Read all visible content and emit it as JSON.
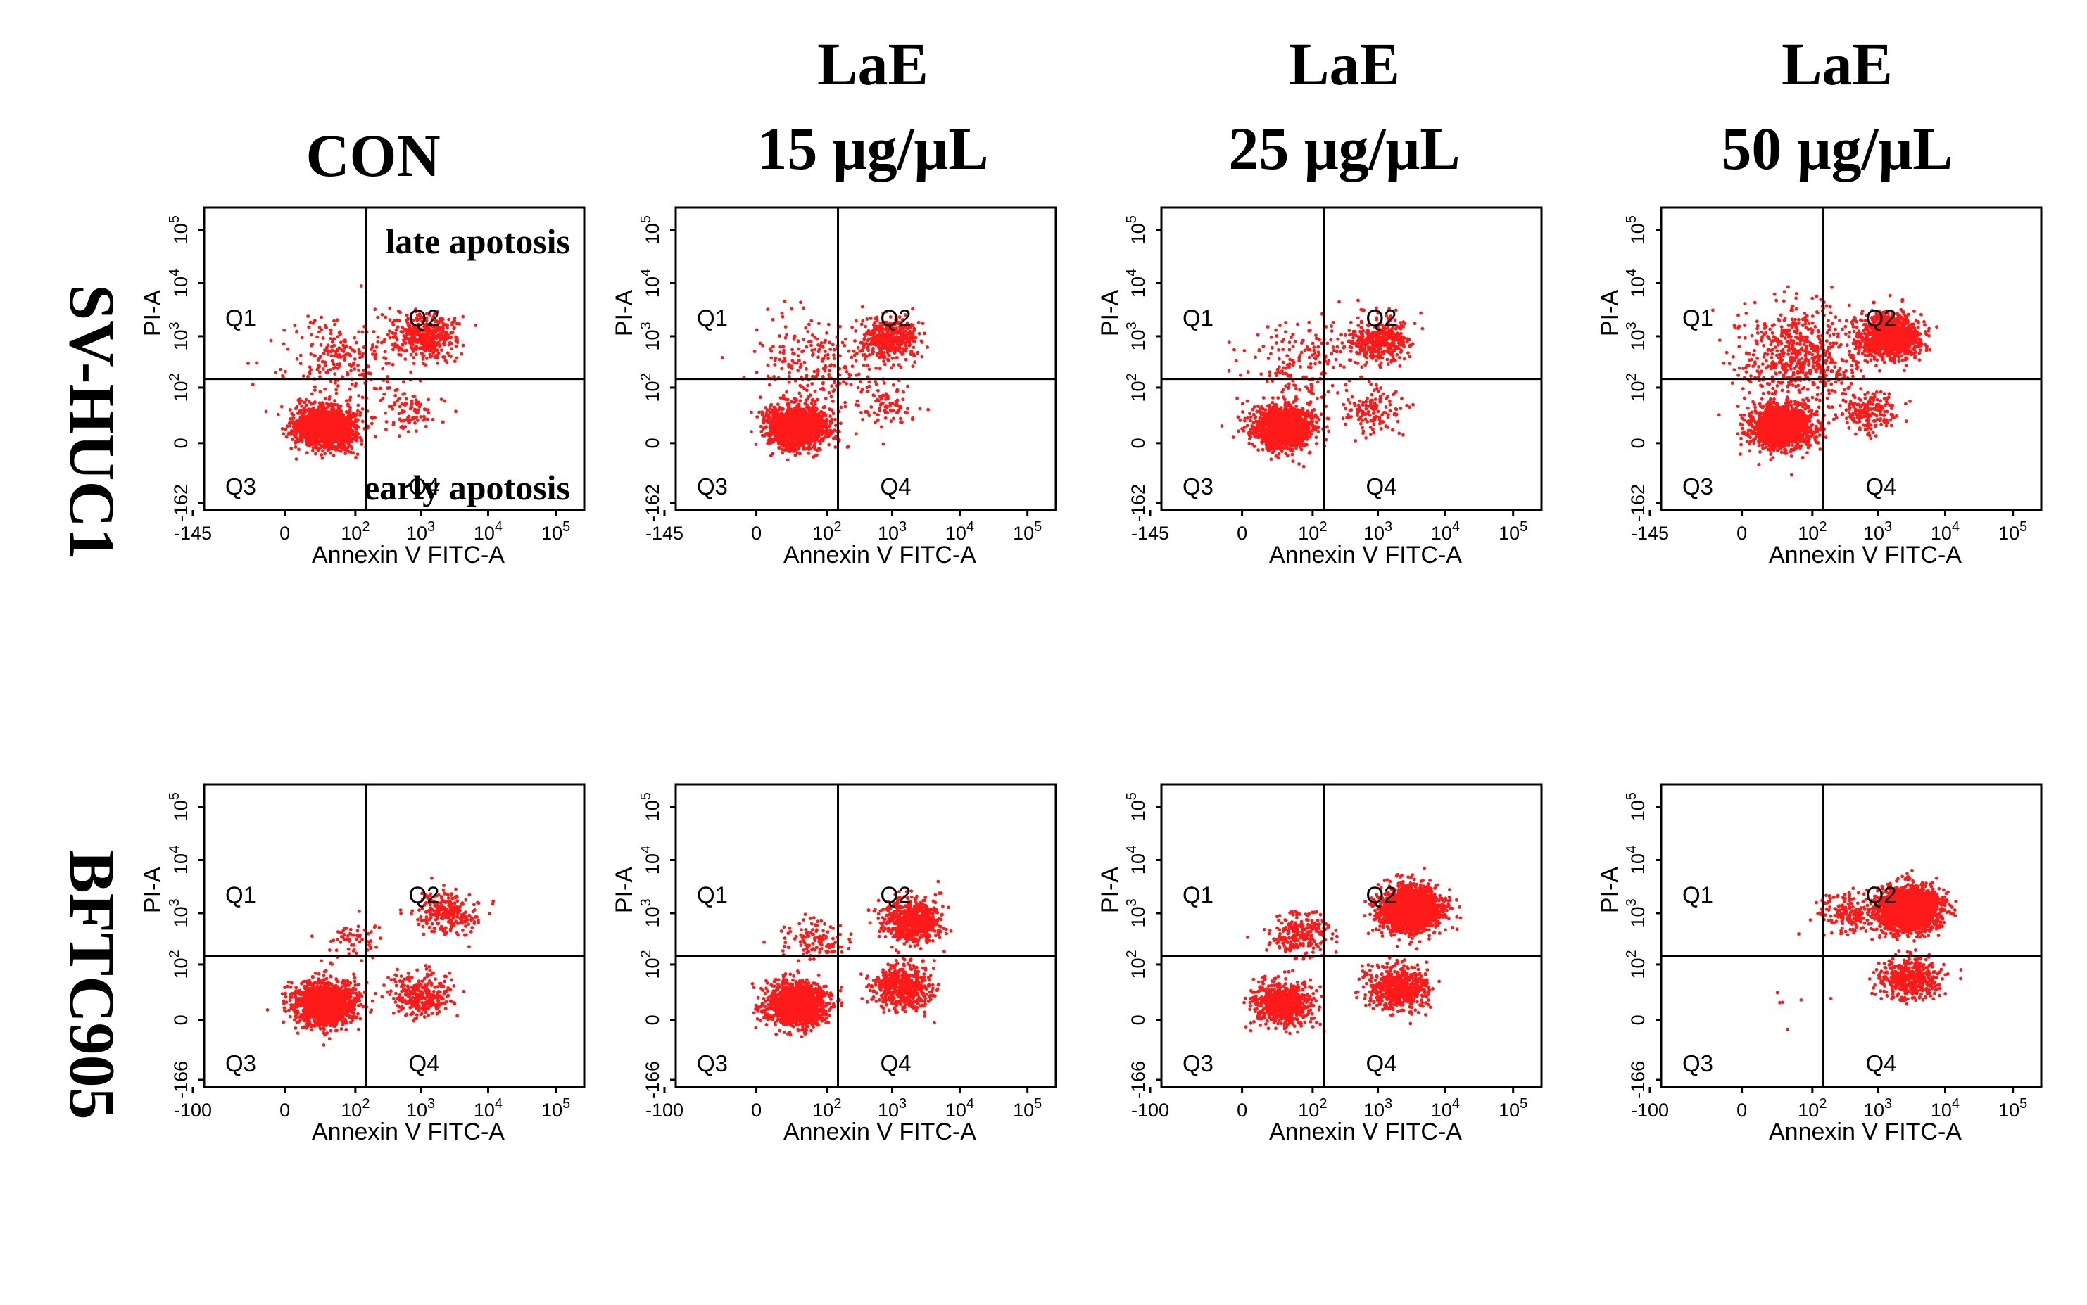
{
  "figure": {
    "columns": [
      "CON",
      "LaE\n15 μg/μL",
      "LaE\n25 μg/μL",
      "LaE\n50 μg/μL"
    ],
    "rows": [
      "SV-HUC1",
      "BFTC905"
    ],
    "point_color": "#ff1a1a"
  },
  "chart_data": [
    {
      "type": "scatter",
      "id": "sv-huc1-con",
      "row": "SV-HUC1",
      "column": "CON",
      "xlabel": "Annexin V FITC-A",
      "ylabel": "PI-A",
      "x_ticks": [
        "-145",
        "0",
        "10^2",
        "10^3",
        "10^4",
        "10^5"
      ],
      "y_ticks": [
        "-162",
        "0",
        "10^2",
        "10^3",
        "10^4",
        "10^5"
      ],
      "gate": {
        "x": 150,
        "y": 150
      },
      "quadrants": [
        "Q1",
        "Q2",
        "Q3",
        "Q4"
      ],
      "annotations": [
        "late apotosis",
        "early apotosis"
      ],
      "clusters": [
        {
          "region": "Q3",
          "center": [
            30,
            10
          ],
          "n": 1500
        },
        {
          "region": "Q1-Q3 tail",
          "center": [
            60,
            400
          ],
          "n": 250
        },
        {
          "region": "Q2",
          "center": [
            1200,
            1000
          ],
          "n": 450
        },
        {
          "region": "Q4",
          "center": [
            700,
            30
          ],
          "n": 90
        }
      ]
    },
    {
      "type": "scatter",
      "id": "sv-huc1-15",
      "row": "SV-HUC1",
      "column": "LaE 15 μg/μL",
      "xlabel": "Annexin V FITC-A",
      "ylabel": "PI-A",
      "x_ticks": [
        "-145",
        "0",
        "10^2",
        "10^3",
        "10^4",
        "10^5"
      ],
      "y_ticks": [
        "-162",
        "0",
        "10^2",
        "10^3",
        "10^4",
        "10^5"
      ],
      "gate": {
        "x": 150,
        "y": 150
      },
      "quadrants": [
        "Q1",
        "Q2",
        "Q3",
        "Q4"
      ],
      "clusters": [
        {
          "region": "Q3",
          "center": [
            30,
            10
          ],
          "n": 1500
        },
        {
          "region": "Q1-Q3 tail",
          "center": [
            70,
            350
          ],
          "n": 220
        },
        {
          "region": "Q2",
          "center": [
            900,
            900
          ],
          "n": 420
        },
        {
          "region": "Q4",
          "center": [
            900,
            40
          ],
          "n": 90
        }
      ]
    },
    {
      "type": "scatter",
      "id": "sv-huc1-25",
      "row": "SV-HUC1",
      "column": "LaE 25 μg/μL",
      "xlabel": "Annexin V FITC-A",
      "ylabel": "PI-A",
      "x_ticks": [
        "-145",
        "0",
        "10^2",
        "10^3",
        "10^4",
        "10^5"
      ],
      "y_ticks": [
        "-162",
        "0",
        "10^2",
        "10^3",
        "10^4",
        "10^5"
      ],
      "gate": {
        "x": 150,
        "y": 150
      },
      "quadrants": [
        "Q1",
        "Q2",
        "Q3",
        "Q4"
      ],
      "clusters": [
        {
          "region": "Q3",
          "center": [
            30,
            10
          ],
          "n": 1400
        },
        {
          "region": "Q1-Q3 tail",
          "center": [
            70,
            300
          ],
          "n": 200
        },
        {
          "region": "Q2",
          "center": [
            1000,
            800
          ],
          "n": 380
        },
        {
          "region": "Q4",
          "center": [
            800,
            30
          ],
          "n": 130
        }
      ]
    },
    {
      "type": "scatter",
      "id": "sv-huc1-50",
      "row": "SV-HUC1",
      "column": "LaE 50 μg/μL",
      "xlabel": "Annexin V FITC-A",
      "ylabel": "PI-A",
      "x_ticks": [
        "-145",
        "0",
        "10^2",
        "10^3",
        "10^4",
        "10^5"
      ],
      "y_ticks": [
        "-162",
        "0",
        "10^2",
        "10^3",
        "10^4",
        "10^5"
      ],
      "gate": {
        "x": 150,
        "y": 150
      },
      "quadrants": [
        "Q1",
        "Q2",
        "Q3",
        "Q4"
      ],
      "clusters": [
        {
          "region": "Q3",
          "center": [
            30,
            10
          ],
          "n": 1400
        },
        {
          "region": "Q1-Q3 tail",
          "center": [
            60,
            400
          ],
          "n": 650
        },
        {
          "region": "Q2",
          "center": [
            1500,
            1000
          ],
          "n": 1100
        },
        {
          "region": "Q4",
          "center": [
            700,
            30
          ],
          "n": 200
        }
      ]
    },
    {
      "type": "scatter",
      "id": "bftc905-con",
      "row": "BFTC905",
      "column": "CON",
      "xlabel": "Annexin V FITC-A",
      "ylabel": "PI-A",
      "x_ticks": [
        "-100",
        "0",
        "10^2",
        "10^3",
        "10^4",
        "10^5"
      ],
      "y_ticks": [
        "-166",
        "0",
        "10^2",
        "10^3",
        "10^4",
        "10^5"
      ],
      "gate": {
        "x": 150,
        "y": 150
      },
      "quadrants": [
        "Q1",
        "Q2",
        "Q3",
        "Q4"
      ],
      "clusters": [
        {
          "region": "Q3",
          "center": [
            30,
            10
          ],
          "n": 1600
        },
        {
          "region": "Q2",
          "center": [
            2500,
            1000
          ],
          "n": 260
        },
        {
          "region": "Q4",
          "center": [
            1000,
            20
          ],
          "n": 320
        },
        {
          "region": "Q1",
          "center": [
            100,
            300
          ],
          "n": 60
        }
      ]
    },
    {
      "type": "scatter",
      "id": "bftc905-15",
      "row": "BFTC905",
      "column": "LaE 15 μg/μL",
      "xlabel": "Annexin V FITC-A",
      "ylabel": "PI-A",
      "x_ticks": [
        "-100",
        "0",
        "10^2",
        "10^3",
        "10^4",
        "10^5"
      ],
      "y_ticks": [
        "-166",
        "0",
        "10^2",
        "10^3",
        "10^4",
        "10^5"
      ],
      "gate": {
        "x": 150,
        "y": 150
      },
      "quadrants": [
        "Q1",
        "Q2",
        "Q3",
        "Q4"
      ],
      "clusters": [
        {
          "region": "Q3",
          "center": [
            30,
            10
          ],
          "n": 1500
        },
        {
          "region": "Q2",
          "center": [
            2000,
            700
          ],
          "n": 650
        },
        {
          "region": "Q4",
          "center": [
            1500,
            30
          ],
          "n": 550
        },
        {
          "region": "Q1",
          "center": [
            60,
            300
          ],
          "n": 120
        }
      ]
    },
    {
      "type": "scatter",
      "id": "bftc905-25",
      "row": "BFTC905",
      "column": "LaE 25 μg/μL",
      "xlabel": "Annexin V FITC-A",
      "ylabel": "PI-A",
      "x_ticks": [
        "-100",
        "0",
        "10^2",
        "10^3",
        "10^4",
        "10^5"
      ],
      "y_ticks": [
        "-166",
        "0",
        "10^2",
        "10^3",
        "10^4",
        "10^5"
      ],
      "gate": {
        "x": 150,
        "y": 150
      },
      "quadrants": [
        "Q1",
        "Q2",
        "Q3",
        "Q4"
      ],
      "clusters": [
        {
          "region": "Q2",
          "center": [
            3000,
            1200
          ],
          "n": 2200
        },
        {
          "region": "Q3",
          "center": [
            30,
            10
          ],
          "n": 700
        },
        {
          "region": "Q4",
          "center": [
            2000,
            30
          ],
          "n": 600
        },
        {
          "region": "Q1",
          "center": [
            60,
            400
          ],
          "n": 250
        }
      ]
    },
    {
      "type": "scatter",
      "id": "bftc905-50",
      "row": "BFTC905",
      "column": "LaE 50 μg/μL",
      "xlabel": "Annexin V FITC-A",
      "ylabel": "PI-A",
      "x_ticks": [
        "-100",
        "0",
        "10^2",
        "10^3",
        "10^4",
        "10^5"
      ],
      "y_ticks": [
        "-166",
        "0",
        "10^2",
        "10^3",
        "10^4",
        "10^5"
      ],
      "gate": {
        "x": 150,
        "y": 150
      },
      "quadrants": [
        "Q1",
        "Q2",
        "Q3",
        "Q4"
      ],
      "clusters": [
        {
          "region": "Q2",
          "center": [
            3000,
            1200
          ],
          "n": 2300
        },
        {
          "region": "Q4",
          "center": [
            3000,
            50
          ],
          "n": 450
        },
        {
          "region": "Q1-Q2 boundary",
          "center": [
            400,
            1000
          ],
          "n": 200
        },
        {
          "region": "Q3",
          "center": [
            40,
            10
          ],
          "n": 6
        }
      ]
    }
  ]
}
